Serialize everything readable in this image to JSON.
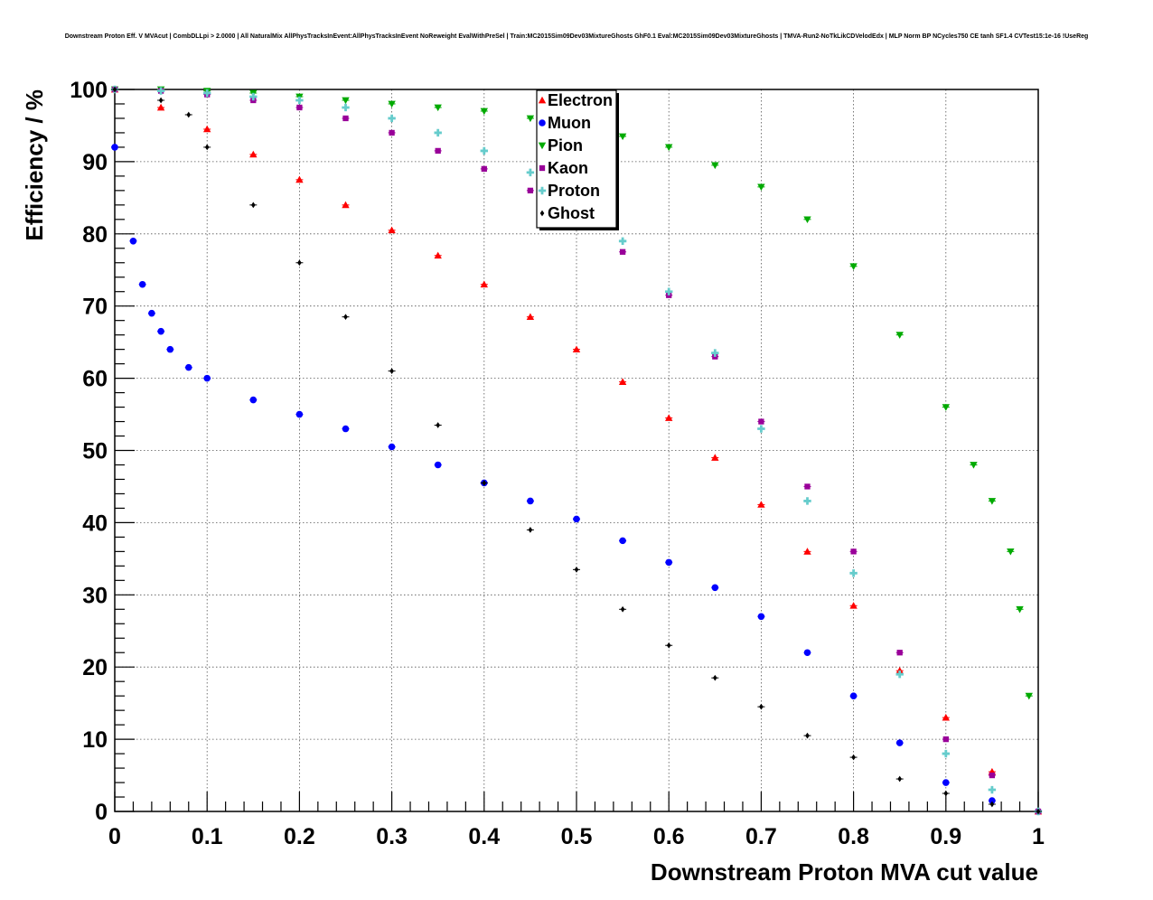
{
  "chart_data": {
    "type": "scatter",
    "title": "Downstream Proton Eff. V MVAcut | CombDLLpi > 2.0000 | All NaturalMix AllPhysTracksInEvent:AllPhysTracksInEvent NoReweight EvalWithPreSel | Train:MC2015Sim09Dev03MixtureGhosts GhF0.1 Eval:MC2015Sim09Dev03MixtureGhosts | TMVA-Run2-NoTkLikCDVelodEdx | MLP Norm BP NCycles750 CE tanh SF1.4 CVTest15:1e-16 !UseReg",
    "xlabel": "Downstream Proton MVA cut value",
    "ylabel": "Efficiency / %",
    "xlim": [
      0,
      1
    ],
    "ylim": [
      0,
      100
    ],
    "x_ticks": [
      "0",
      "0.1",
      "0.2",
      "0.3",
      "0.4",
      "0.5",
      "0.6",
      "0.7",
      "0.8",
      "0.9",
      "1"
    ],
    "y_ticks": [
      "0",
      "10",
      "20",
      "30",
      "40",
      "50",
      "60",
      "70",
      "80",
      "90",
      "100"
    ],
    "grid": true,
    "legend_position": "top-center",
    "series": [
      {
        "name": "Electron",
        "color": "#ff0000",
        "marker": "triangle-up",
        "points": [
          [
            0,
            100
          ],
          [
            0.05,
            97.5
          ],
          [
            0.1,
            94.5
          ],
          [
            0.15,
            91
          ],
          [
            0.2,
            87.5
          ],
          [
            0.25,
            84
          ],
          [
            0.3,
            80.5
          ],
          [
            0.35,
            77
          ],
          [
            0.4,
            73
          ],
          [
            0.45,
            68.5
          ],
          [
            0.5,
            64
          ],
          [
            0.55,
            59.5
          ],
          [
            0.6,
            54.5
          ],
          [
            0.65,
            49
          ],
          [
            0.7,
            42.5
          ],
          [
            0.75,
            36
          ],
          [
            0.8,
            28.5
          ],
          [
            0.85,
            19.5
          ],
          [
            0.9,
            13
          ],
          [
            0.95,
            5.5
          ],
          [
            1,
            0
          ]
        ]
      },
      {
        "name": "Muon",
        "color": "#0000ff",
        "marker": "circle",
        "points": [
          [
            0,
            92
          ],
          [
            0.02,
            79
          ],
          [
            0.03,
            73
          ],
          [
            0.04,
            69
          ],
          [
            0.05,
            66.5
          ],
          [
            0.06,
            64
          ],
          [
            0.08,
            61.5
          ],
          [
            0.1,
            60
          ],
          [
            0.15,
            57
          ],
          [
            0.2,
            55
          ],
          [
            0.25,
            53
          ],
          [
            0.3,
            50.5
          ],
          [
            0.35,
            48
          ],
          [
            0.4,
            45.5
          ],
          [
            0.45,
            43
          ],
          [
            0.5,
            40.5
          ],
          [
            0.55,
            37.5
          ],
          [
            0.6,
            34.5
          ],
          [
            0.65,
            31
          ],
          [
            0.7,
            27
          ],
          [
            0.75,
            22
          ],
          [
            0.8,
            16
          ],
          [
            0.85,
            9.5
          ],
          [
            0.9,
            4
          ],
          [
            0.95,
            1.5
          ],
          [
            1,
            0
          ]
        ]
      },
      {
        "name": "Pion",
        "color": "#00aa00",
        "marker": "triangle-down",
        "points": [
          [
            0,
            100
          ],
          [
            0.05,
            100
          ],
          [
            0.1,
            99.8
          ],
          [
            0.15,
            99.5
          ],
          [
            0.2,
            99
          ],
          [
            0.25,
            98.5
          ],
          [
            0.3,
            98
          ],
          [
            0.35,
            97.5
          ],
          [
            0.4,
            97
          ],
          [
            0.45,
            96
          ],
          [
            0.5,
            95
          ],
          [
            0.55,
            93.5
          ],
          [
            0.6,
            92
          ],
          [
            0.65,
            89.5
          ],
          [
            0.7,
            86.5
          ],
          [
            0.75,
            82
          ],
          [
            0.8,
            75.5
          ],
          [
            0.85,
            66
          ],
          [
            0.9,
            56
          ],
          [
            0.93,
            48
          ],
          [
            0.95,
            43
          ],
          [
            0.97,
            36
          ],
          [
            0.98,
            28
          ],
          [
            0.99,
            16
          ]
        ]
      },
      {
        "name": "Kaon",
        "color": "#990099",
        "marker": "square",
        "points": [
          [
            0,
            100
          ],
          [
            0.05,
            99.8
          ],
          [
            0.1,
            99.3
          ],
          [
            0.15,
            98.5
          ],
          [
            0.2,
            97.5
          ],
          [
            0.25,
            96
          ],
          [
            0.3,
            94
          ],
          [
            0.35,
            91.5
          ],
          [
            0.4,
            89
          ],
          [
            0.45,
            86
          ],
          [
            0.5,
            82
          ],
          [
            0.55,
            77.5
          ],
          [
            0.6,
            71.5
          ],
          [
            0.65,
            63
          ],
          [
            0.7,
            54
          ],
          [
            0.75,
            45
          ],
          [
            0.8,
            36
          ],
          [
            0.85,
            22
          ],
          [
            0.9,
            10
          ],
          [
            0.95,
            5
          ],
          [
            1,
            0
          ]
        ]
      },
      {
        "name": "Proton",
        "color": "#66cccc",
        "marker": "cross",
        "points": [
          [
            0,
            100
          ],
          [
            0.05,
            99.8
          ],
          [
            0.1,
            99.5
          ],
          [
            0.15,
            99
          ],
          [
            0.2,
            98.5
          ],
          [
            0.25,
            97.5
          ],
          [
            0.3,
            96
          ],
          [
            0.35,
            94
          ],
          [
            0.4,
            91.5
          ],
          [
            0.45,
            88.5
          ],
          [
            0.5,
            84.5
          ],
          [
            0.55,
            79
          ],
          [
            0.6,
            72
          ],
          [
            0.65,
            63.5
          ],
          [
            0.7,
            53
          ],
          [
            0.75,
            43
          ],
          [
            0.8,
            33
          ],
          [
            0.85,
            19
          ],
          [
            0.9,
            8
          ],
          [
            0.95,
            3
          ],
          [
            1,
            0
          ]
        ]
      },
      {
        "name": "Ghost",
        "color": "#000000",
        "marker": "diamond",
        "points": [
          [
            0,
            100
          ],
          [
            0.05,
            98.5
          ],
          [
            0.08,
            96.5
          ],
          [
            0.1,
            92
          ],
          [
            0.15,
            84
          ],
          [
            0.2,
            76
          ],
          [
            0.25,
            68.5
          ],
          [
            0.3,
            61
          ],
          [
            0.35,
            53.5
          ],
          [
            0.4,
            45.5
          ],
          [
            0.45,
            39
          ],
          [
            0.5,
            33.5
          ],
          [
            0.55,
            28
          ],
          [
            0.6,
            23
          ],
          [
            0.65,
            18.5
          ],
          [
            0.7,
            14.5
          ],
          [
            0.75,
            10.5
          ],
          [
            0.8,
            7.5
          ],
          [
            0.85,
            4.5
          ],
          [
            0.9,
            2.5
          ],
          [
            0.95,
            1
          ],
          [
            1,
            0
          ]
        ]
      }
    ]
  }
}
